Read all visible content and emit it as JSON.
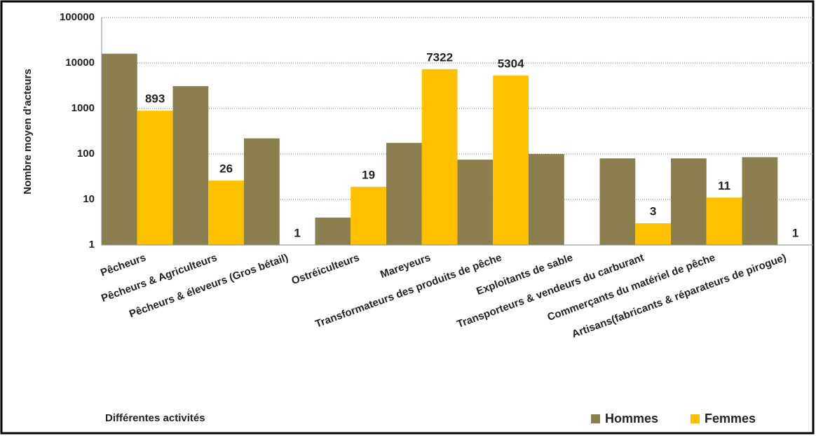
{
  "chart_data": {
    "type": "bar",
    "y_label": "Nombre moyen d'acteurs",
    "x_label": "Différentes activités",
    "categories": [
      "Pêcheurs",
      "Pêcheurs & Agriculteurs",
      "Pêcheurs & éleveurs (Gros bétail)",
      "Ostréiculteurs",
      "Mareyeurs",
      "Transformateurs des produits de pêche",
      "Exploitants de sable",
      "Transporteurs & vendeurs du carburant",
      "Commerçants du matériel de pêche",
      "Artisans(fabricants & réparateurs de pirogue)"
    ],
    "series": [
      {
        "name": "Hommes",
        "color": "#8c7f4f",
        "show_labels": false,
        "values": [
          16000,
          3100,
          220,
          4,
          175,
          75,
          100,
          80,
          80,
          85
        ]
      },
      {
        "name": "Femmes",
        "color": "#ffc000",
        "show_labels": true,
        "values": [
          893,
          26,
          1,
          19,
          7322,
          5304,
          null,
          3,
          11,
          1
        ]
      }
    ],
    "log_y": true,
    "ylim": [
      1,
      100000
    ],
    "yticks": [
      1,
      10,
      100,
      1000,
      10000,
      100000
    ],
    "grid": true,
    "legend": "bottom-right"
  }
}
